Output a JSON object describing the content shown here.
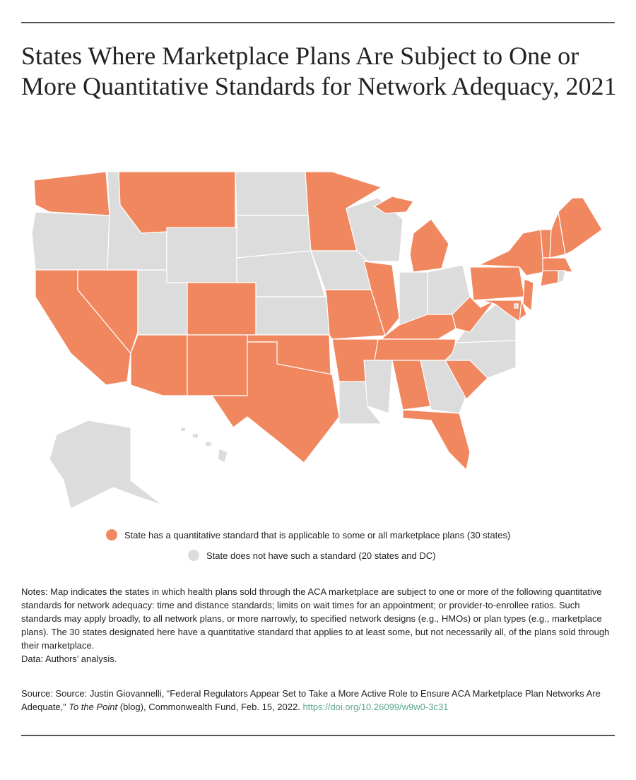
{
  "title": "States Where Marketplace Plans Are Subject to One or More Quantitative Standards for Network Adequacy, 2021",
  "legend": [
    {
      "label": "State has a quantitative standard that is applicable to some or all marketplace plans (30 states)",
      "color": "#f0875f"
    },
    {
      "label": "State does not have such a standard (20 states and DC)",
      "color": "#dcdcdc"
    }
  ],
  "notes": "Notes: Map indicates the states in which health plans sold through the ACA marketplace are subject to one or more of the following quantitative standards for network adequacy: time and distance standards; limits on wait times for an appointment; or provider-to-enrollee ratios. Such standards may apply broadly, to all network plans, or more narrowly, to specified network designs (e.g., HMOs) or plan types (e.g., marketplace plans). The 30 states designated here have a quantitative standard that applies to at least some, but not necessarily all, of the plans sold through their marketplace.",
  "data_note": "Data: Authors’ analysis.",
  "source": {
    "text": "Source: Source: Justin Giovannelli, “Federal Regulators Appear Set to Take a More Active Role to Ensure ACA Marketplace Plan Networks Are Adequate,” ",
    "italic": "To the Point",
    "rest": " (blog), Commonwealth Fund, Feb. 15, 2022. ",
    "link": "https://doi.org/10.26099/w9w0-3c31"
  }
}
